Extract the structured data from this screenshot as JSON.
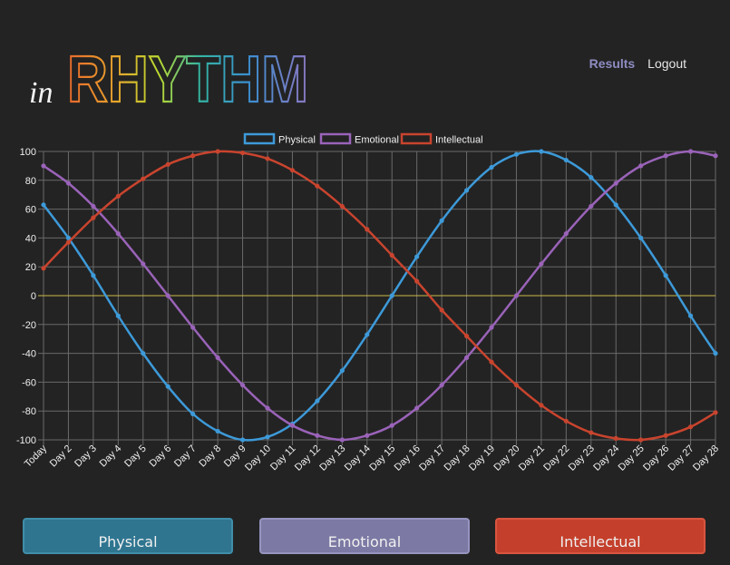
{
  "header": {
    "logo_prefix": "in",
    "logo_word": "RHYTHM"
  },
  "nav": {
    "results_label": "Results",
    "logout_label": "Logout"
  },
  "cards": {
    "physical_label": "Physical",
    "emotional_label": "Emotional",
    "intellectual_label": "Intellectual"
  },
  "colors": {
    "physical": "#3d9ad9",
    "emotional": "#9a63b9",
    "intellectual": "#c9442e",
    "zero_line": "#c8b84a",
    "grid": "#6a6a6a"
  },
  "chart_data": {
    "type": "line",
    "categories": [
      "Today",
      "Day 2",
      "Day 3",
      "Day 4",
      "Day 5",
      "Day 6",
      "Day 7",
      "Day 8",
      "Day 9",
      "Day 10",
      "Day 11",
      "Day 12",
      "Day 13",
      "Day 14",
      "Day 15",
      "Day 16",
      "Day 17",
      "Day 18",
      "Day 19",
      "Day 20",
      "Day 21",
      "Day 22",
      "Day 23",
      "Day 24",
      "Day 25",
      "Day 26",
      "Day 27",
      "Day 28"
    ],
    "ylim": [
      -100,
      100
    ],
    "yticks": [
      100,
      80,
      60,
      40,
      20,
      0,
      -20,
      -40,
      -60,
      -80,
      -100
    ],
    "grid": true,
    "legend_position": "top-center",
    "series": [
      {
        "name": "Physical",
        "values": [
          63,
          40,
          14,
          -14,
          -40,
          -63,
          -82,
          -94,
          -100,
          -98,
          -89,
          -73,
          -52,
          -27,
          0,
          27,
          52,
          73,
          89,
          98,
          100,
          94,
          82,
          63,
          40,
          14,
          -14,
          -40
        ]
      },
      {
        "name": "Emotional",
        "values": [
          90,
          78,
          62,
          43,
          22,
          0,
          -22,
          -43,
          -62,
          -78,
          -90,
          -97,
          -100,
          -97,
          -90,
          -78,
          -62,
          -43,
          -22,
          0,
          22,
          43,
          62,
          78,
          90,
          97,
          100,
          97
        ]
      },
      {
        "name": "Intellectual",
        "values": [
          19,
          37,
          54,
          69,
          81,
          91,
          97,
          100,
          99,
          95,
          87,
          76,
          62,
          46,
          28,
          10,
          -10,
          -28,
          -46,
          -62,
          -76,
          -87,
          -95,
          -99,
          -100,
          -97,
          -91,
          -81
        ]
      }
    ]
  }
}
